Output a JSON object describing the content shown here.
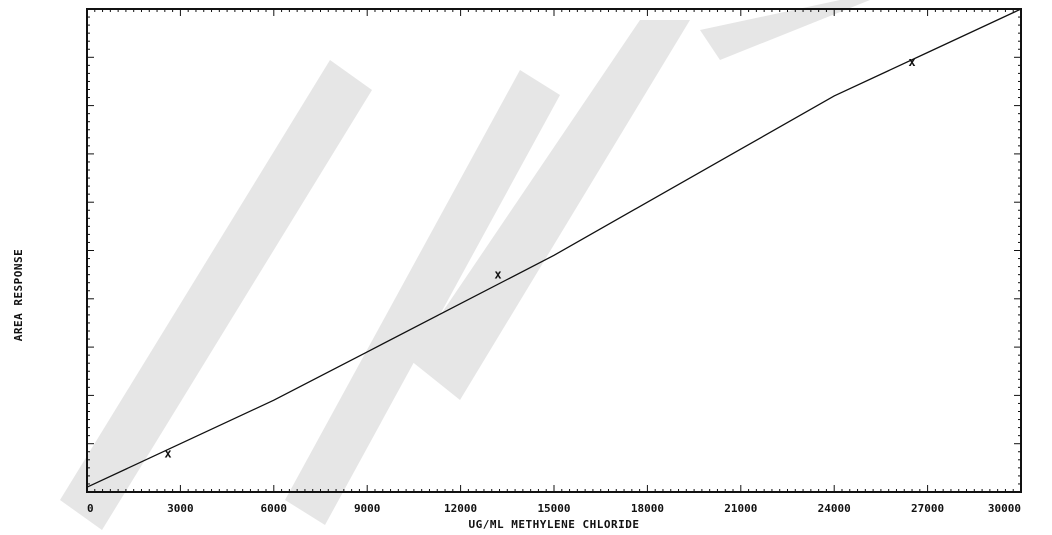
{
  "chart_data": {
    "type": "line",
    "title": "",
    "xlabel": "UG/ML METHYLENE CHLORIDE",
    "ylabel": "AREA RESPONSE",
    "xlim": [
      0,
      30000
    ],
    "ylim": [
      0,
      1
    ],
    "x_ticks": [
      0,
      3000,
      6000,
      9000,
      12000,
      15000,
      18000,
      21000,
      24000,
      27000,
      30000
    ],
    "x_tick_labels": [
      "0",
      "3000",
      "6000",
      "9000",
      "12000",
      "15000",
      "18000",
      "21000",
      "24000",
      "27000",
      "30000"
    ],
    "y_tick_labels_shown": false,
    "grid": false,
    "legend": "none",
    "series": [
      {
        "values_note": "",
        "x": [
          0,
          3000,
          6000,
          9000,
          12000,
          15000,
          18000,
          21000,
          24000,
          27000,
          30000
        ],
        "y": [
          0.01,
          0.1,
          0.19,
          0.29,
          0.39,
          0.49,
          0.6,
          0.71,
          0.82,
          0.91,
          1.0
        ]
      }
    ],
    "markers": {
      "symbol": "x",
      "x": [
        2600,
        13200,
        26500
      ],
      "y": [
        0.08,
        0.45,
        0.89
      ]
    }
  }
}
